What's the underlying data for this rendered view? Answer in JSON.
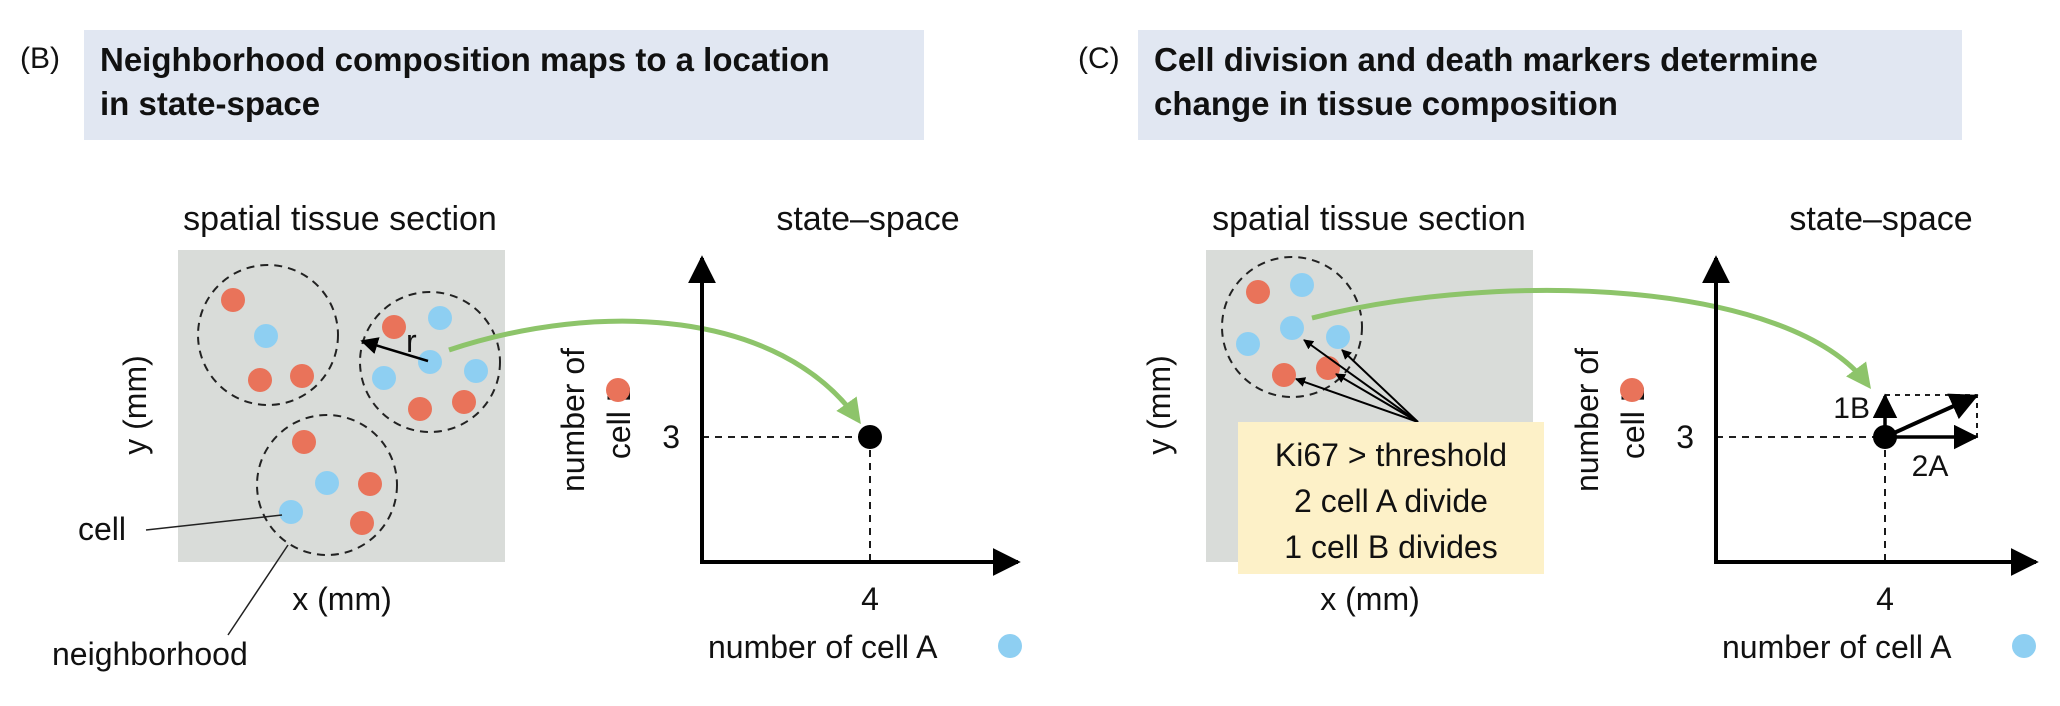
{
  "colors": {
    "title_bg": "#e1e7f2",
    "tissue_bg": "#d9dcd9",
    "cell_A": "#8ecff2",
    "cell_B": "#e9735a",
    "arrow_green": "#8dc46a",
    "annotation_bg": "#fdf1c8",
    "state_point": "#000000"
  },
  "panelB": {
    "letter": "(B)",
    "title_line1": "Neighborhood composition maps to a location",
    "title_line2": "in state-space",
    "tissue_label": "spatial tissue section",
    "x_axis_label": "x (mm)",
    "y_axis_label": "y (mm)",
    "radius_label": "r",
    "cell_callout": "cell",
    "neighborhood_callout": "neighborhood",
    "state_space_label": "state–space",
    "y_tick": "3",
    "x_tick": "4",
    "y_axis_text_line1": "number of",
    "y_axis_text_line2": "cell B",
    "x_axis_text": "number of cell A"
  },
  "panelC": {
    "letter": "(C)",
    "title_line1": "Cell division and death markers determine",
    "title_line2": "change in tissue composition",
    "tissue_label": "spatial tissue section",
    "x_axis_label": "x (mm)",
    "y_axis_label": "y (mm)",
    "annotation_line1": "Ki67 > threshold",
    "annotation_line2": "2 cell A divide",
    "annotation_line3": "1 cell B divides",
    "state_space_label": "state–space",
    "y_tick": "3",
    "x_tick": "4",
    "y_axis_text_line1": "number of",
    "y_axis_text_line2": "cell B",
    "x_axis_text": "number of cell A",
    "vector_B_label": "1B",
    "vector_A_label": "2A"
  }
}
